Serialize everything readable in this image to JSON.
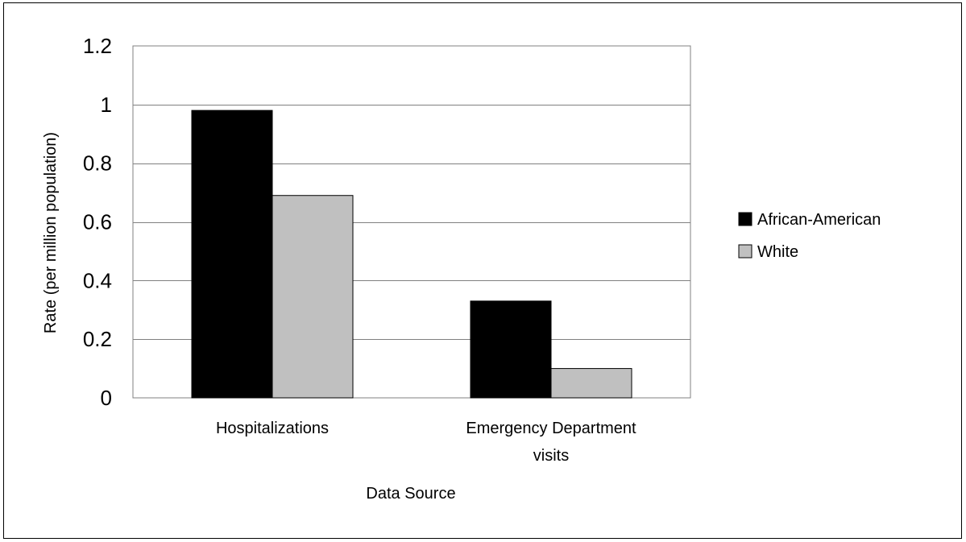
{
  "chart_data": {
    "type": "bar",
    "title": "",
    "xlabel": "Data Source",
    "ylabel": "Rate (per million population)",
    "categories": [
      [
        "Hospitalizations"
      ],
      [
        "Emergency Department",
        "visits"
      ]
    ],
    "series": [
      {
        "name": "African-American",
        "values": [
          0.98,
          0.33
        ],
        "color": "#000000"
      },
      {
        "name": "White",
        "values": [
          0.69,
          0.1
        ],
        "color": "#c0c0c0"
      }
    ],
    "ylim": [
      0,
      1.2
    ],
    "yticks": [
      "0",
      "0.2",
      "0.4",
      "0.6",
      "0.8",
      "1",
      "1.2"
    ],
    "ytick_values": [
      0,
      0.2,
      0.4,
      0.6,
      0.8,
      1.0,
      1.2
    ],
    "grid": true,
    "legend_position": "right"
  }
}
